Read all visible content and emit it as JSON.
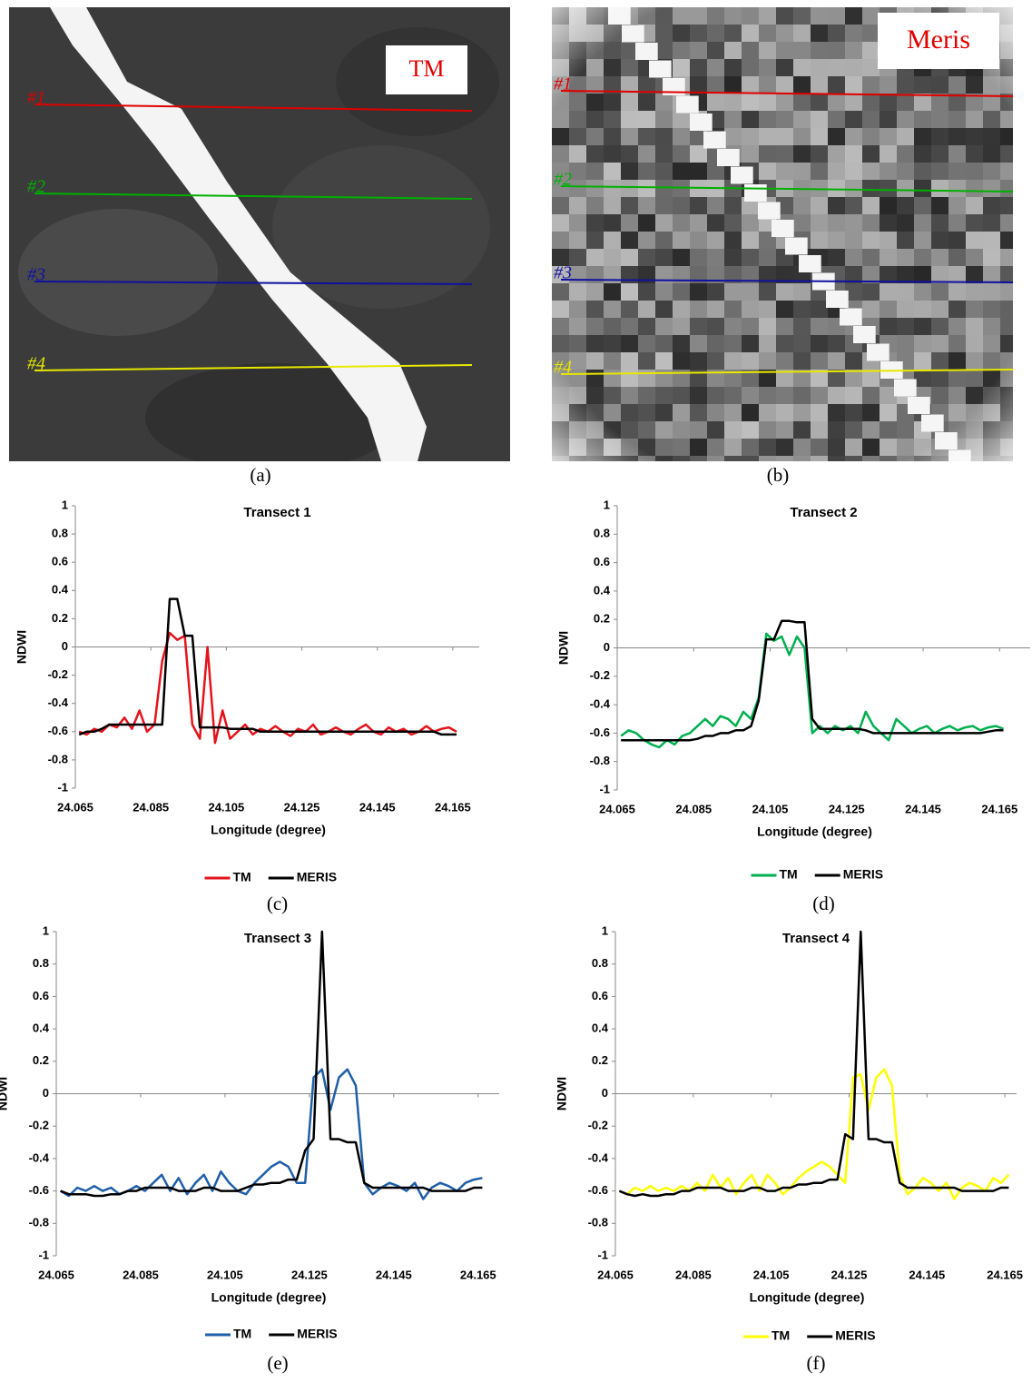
{
  "images": [
    {
      "label": "TM",
      "caption": "(a)",
      "transects": [
        "#1",
        "#2",
        "#3",
        "#4"
      ]
    },
    {
      "label": "Meris",
      "caption": "(b)",
      "transects": [
        "#1",
        "#2",
        "#3",
        "#4"
      ]
    }
  ],
  "chart_data": [
    {
      "type": "line",
      "title": "Transect 1",
      "caption": "(c)",
      "x_label": "Longitude (degree)",
      "y_label": "NDWI",
      "x": [
        24.066,
        24.068,
        24.07,
        24.072,
        24.074,
        24.076,
        24.078,
        24.08,
        24.082,
        24.084,
        24.086,
        24.088,
        24.09,
        24.092,
        24.094,
        24.096,
        24.098,
        24.1,
        24.102,
        24.104,
        24.106,
        24.108,
        24.11,
        24.112,
        24.114,
        24.116,
        24.118,
        24.12,
        24.122,
        24.124,
        24.126,
        24.128,
        24.13,
        24.132,
        24.134,
        24.136,
        24.138,
        24.14,
        24.142,
        24.144,
        24.146,
        24.148,
        24.15,
        24.152,
        24.154,
        24.156,
        24.158,
        24.16,
        24.162,
        24.164,
        24.166
      ],
      "series": [
        {
          "name": "TM",
          "color": "#e3141b",
          "values": [
            -0.6,
            -0.62,
            -0.58,
            -0.6,
            -0.55,
            -0.57,
            -0.5,
            -0.58,
            -0.45,
            -0.6,
            -0.55,
            -0.1,
            0.1,
            0.05,
            0.08,
            -0.55,
            -0.65,
            0.0,
            -0.68,
            -0.45,
            -0.65,
            -0.6,
            -0.55,
            -0.62,
            -0.58,
            -0.6,
            -0.56,
            -0.6,
            -0.63,
            -0.58,
            -0.6,
            -0.55,
            -0.62,
            -0.6,
            -0.57,
            -0.6,
            -0.62,
            -0.58,
            -0.55,
            -0.6,
            -0.62,
            -0.57,
            -0.6,
            -0.58,
            -0.62,
            -0.6,
            -0.56,
            -0.6,
            -0.58,
            -0.57,
            -0.6
          ]
        },
        {
          "name": "MERIS",
          "color": "#000000",
          "values": [
            -0.62,
            -0.6,
            -0.6,
            -0.58,
            -0.55,
            -0.55,
            -0.55,
            -0.55,
            -0.55,
            -0.55,
            -0.55,
            -0.55,
            0.34,
            0.34,
            0.08,
            0.08,
            -0.57,
            -0.57,
            -0.57,
            -0.57,
            -0.58,
            -0.58,
            -0.58,
            -0.58,
            -0.6,
            -0.6,
            -0.6,
            -0.6,
            -0.6,
            -0.6,
            -0.6,
            -0.6,
            -0.6,
            -0.6,
            -0.6,
            -0.6,
            -0.6,
            -0.6,
            -0.6,
            -0.6,
            -0.6,
            -0.6,
            -0.6,
            -0.6,
            -0.6,
            -0.6,
            -0.6,
            -0.6,
            -0.62,
            -0.62,
            -0.62
          ]
        }
      ],
      "xlim": [
        24.065,
        24.172
      ],
      "ylim": [
        -1,
        1
      ],
      "xticks": [
        24.065,
        24.085,
        24.105,
        24.125,
        24.145,
        24.165
      ],
      "yticks": [
        -1,
        -0.8,
        -0.6,
        -0.4,
        -0.2,
        0,
        0.2,
        0.4,
        0.6,
        0.8,
        1
      ],
      "legend": "bottom"
    },
    {
      "type": "line",
      "title": "Transect 2",
      "caption": "(d)",
      "x_label": "Longitude (degree)",
      "y_label": "NDWI",
      "x": [
        24.066,
        24.068,
        24.07,
        24.072,
        24.074,
        24.076,
        24.078,
        24.08,
        24.082,
        24.084,
        24.086,
        24.088,
        24.09,
        24.092,
        24.094,
        24.096,
        24.098,
        24.1,
        24.102,
        24.104,
        24.106,
        24.108,
        24.11,
        24.112,
        24.114,
        24.116,
        24.118,
        24.12,
        24.122,
        24.124,
        24.126,
        24.128,
        24.13,
        24.132,
        24.134,
        24.136,
        24.138,
        24.14,
        24.142,
        24.144,
        24.146,
        24.148,
        24.15,
        24.152,
        24.154,
        24.156,
        24.158,
        24.16,
        24.162,
        24.164,
        24.166
      ],
      "series": [
        {
          "name": "TM",
          "color": "#00b050",
          "values": [
            -0.62,
            -0.58,
            -0.6,
            -0.65,
            -0.68,
            -0.7,
            -0.65,
            -0.68,
            -0.62,
            -0.6,
            -0.55,
            -0.5,
            -0.55,
            -0.48,
            -0.5,
            -0.55,
            -0.45,
            -0.5,
            -0.35,
            0.1,
            0.05,
            0.08,
            -0.05,
            0.08,
            0.0,
            -0.6,
            -0.55,
            -0.6,
            -0.55,
            -0.58,
            -0.55,
            -0.6,
            -0.45,
            -0.55,
            -0.6,
            -0.65,
            -0.5,
            -0.55,
            -0.6,
            -0.57,
            -0.55,
            -0.6,
            -0.57,
            -0.55,
            -0.58,
            -0.56,
            -0.55,
            -0.58,
            -0.56,
            -0.55,
            -0.57
          ]
        },
        {
          "name": "MERIS",
          "color": "#000000",
          "values": [
            -0.65,
            -0.65,
            -0.65,
            -0.65,
            -0.65,
            -0.65,
            -0.65,
            -0.65,
            -0.65,
            -0.65,
            -0.64,
            -0.62,
            -0.62,
            -0.6,
            -0.6,
            -0.58,
            -0.58,
            -0.55,
            -0.37,
            0.06,
            0.06,
            0.19,
            0.19,
            0.18,
            0.18,
            -0.5,
            -0.57,
            -0.57,
            -0.57,
            -0.57,
            -0.57,
            -0.57,
            -0.58,
            -0.6,
            -0.6,
            -0.6,
            -0.6,
            -0.6,
            -0.6,
            -0.6,
            -0.6,
            -0.6,
            -0.6,
            -0.6,
            -0.6,
            -0.6,
            -0.6,
            -0.6,
            -0.59,
            -0.58,
            -0.58
          ]
        }
      ],
      "xlim": [
        24.065,
        24.173
      ],
      "ylim": [
        -1,
        1
      ],
      "xticks": [
        24.065,
        24.085,
        24.105,
        24.125,
        24.145,
        24.165
      ],
      "yticks": [
        -1,
        -0.8,
        -0.6,
        -0.4,
        -0.2,
        0,
        0.2,
        0.4,
        0.6,
        0.8,
        1
      ],
      "legend": "bottom"
    },
    {
      "type": "line",
      "title": "Transect 3",
      "caption": "(e)",
      "x_label": "Longitude (degree)",
      "y_label": "NDWI",
      "x": [
        24.066,
        24.068,
        24.07,
        24.072,
        24.074,
        24.076,
        24.078,
        24.08,
        24.082,
        24.084,
        24.086,
        24.088,
        24.09,
        24.092,
        24.094,
        24.096,
        24.098,
        24.1,
        24.102,
        24.104,
        24.106,
        24.108,
        24.11,
        24.112,
        24.114,
        24.116,
        24.118,
        24.12,
        24.122,
        24.124,
        24.126,
        24.128,
        24.13,
        24.132,
        24.134,
        24.136,
        24.138,
        24.14,
        24.142,
        24.144,
        24.146,
        24.148,
        24.15,
        24.152,
        24.154,
        24.156,
        24.158,
        24.16,
        24.162,
        24.164,
        24.166
      ],
      "series": [
        {
          "name": "TM",
          "color": "#1f5fa8",
          "values": [
            -0.6,
            -0.63,
            -0.58,
            -0.6,
            -0.57,
            -0.6,
            -0.58,
            -0.62,
            -0.6,
            -0.57,
            -0.6,
            -0.55,
            -0.5,
            -0.6,
            -0.52,
            -0.62,
            -0.55,
            -0.5,
            -0.6,
            -0.48,
            -0.55,
            -0.6,
            -0.62,
            -0.55,
            -0.5,
            -0.45,
            -0.42,
            -0.45,
            -0.55,
            -0.55,
            0.1,
            0.15,
            -0.1,
            0.1,
            0.15,
            0.05,
            -0.55,
            -0.62,
            -0.58,
            -0.55,
            -0.57,
            -0.6,
            -0.55,
            -0.65,
            -0.58,
            -0.55,
            -0.57,
            -0.6,
            -0.55,
            -0.53,
            -0.52
          ]
        },
        {
          "name": "MERIS",
          "color": "#000000",
          "values": [
            -0.6,
            -0.62,
            -0.62,
            -0.62,
            -0.63,
            -0.63,
            -0.62,
            -0.62,
            -0.6,
            -0.6,
            -0.58,
            -0.58,
            -0.58,
            -0.58,
            -0.6,
            -0.6,
            -0.6,
            -0.58,
            -0.58,
            -0.6,
            -0.6,
            -0.6,
            -0.58,
            -0.56,
            -0.56,
            -0.55,
            -0.55,
            -0.53,
            -0.53,
            -0.35,
            -0.28,
            1,
            -0.28,
            -0.28,
            -0.3,
            -0.3,
            -0.55,
            -0.58,
            -0.58,
            -0.58,
            -0.58,
            -0.58,
            -0.58,
            -0.58,
            -0.6,
            -0.6,
            -0.6,
            -0.6,
            -0.6,
            -0.58,
            -0.58
          ]
        }
      ],
      "xlim": [
        24.065,
        24.17
      ],
      "ylim": [
        -1,
        1
      ],
      "xticks": [
        24.065,
        24.085,
        24.105,
        24.125,
        24.145,
        24.165
      ],
      "yticks": [
        -1,
        -0.8,
        -0.6,
        -0.4,
        -0.2,
        0,
        0.2,
        0.4,
        0.6,
        0.8,
        1
      ],
      "legend": "bottom"
    },
    {
      "type": "line",
      "title": "Transect 4",
      "caption": "(f)",
      "x_label": "Longitude (degree)",
      "y_label": "NDWI",
      "x": [
        24.066,
        24.068,
        24.07,
        24.072,
        24.074,
        24.076,
        24.078,
        24.08,
        24.082,
        24.084,
        24.086,
        24.088,
        24.09,
        24.092,
        24.094,
        24.096,
        24.098,
        24.1,
        24.102,
        24.104,
        24.106,
        24.108,
        24.11,
        24.112,
        24.114,
        24.116,
        24.118,
        24.12,
        24.122,
        24.124,
        24.126,
        24.128,
        24.13,
        24.132,
        24.134,
        24.136,
        24.138,
        24.14,
        24.142,
        24.144,
        24.146,
        24.148,
        24.15,
        24.152,
        24.154,
        24.156,
        24.158,
        24.16,
        24.162,
        24.164,
        24.166
      ],
      "series": [
        {
          "name": "TM",
          "color": "#ffff00",
          "values": [
            -0.6,
            -0.62,
            -0.58,
            -0.6,
            -0.57,
            -0.6,
            -0.58,
            -0.6,
            -0.57,
            -0.6,
            -0.55,
            -0.6,
            -0.5,
            -0.58,
            -0.52,
            -0.62,
            -0.55,
            -0.5,
            -0.6,
            -0.5,
            -0.55,
            -0.62,
            -0.58,
            -0.52,
            -0.48,
            -0.45,
            -0.42,
            -0.45,
            -0.5,
            -0.55,
            0.1,
            0.12,
            -0.1,
            0.1,
            0.15,
            0.05,
            -0.5,
            -0.62,
            -0.58,
            -0.52,
            -0.55,
            -0.6,
            -0.55,
            -0.65,
            -0.58,
            -0.55,
            -0.57,
            -0.6,
            -0.52,
            -0.55,
            -0.5
          ]
        },
        {
          "name": "MERIS",
          "color": "#000000",
          "values": [
            -0.6,
            -0.62,
            -0.63,
            -0.62,
            -0.63,
            -0.63,
            -0.62,
            -0.62,
            -0.6,
            -0.6,
            -0.58,
            -0.58,
            -0.58,
            -0.58,
            -0.6,
            -0.6,
            -0.6,
            -0.58,
            -0.58,
            -0.6,
            -0.6,
            -0.58,
            -0.58,
            -0.56,
            -0.56,
            -0.55,
            -0.55,
            -0.53,
            -0.53,
            -0.25,
            -0.28,
            1,
            -0.28,
            -0.28,
            -0.3,
            -0.3,
            -0.55,
            -0.58,
            -0.58,
            -0.58,
            -0.58,
            -0.58,
            -0.58,
            -0.58,
            -0.6,
            -0.6,
            -0.6,
            -0.6,
            -0.6,
            -0.58,
            -0.58
          ]
        }
      ],
      "xlim": [
        24.065,
        24.168
      ],
      "ylim": [
        -1,
        1
      ],
      "xticks": [
        24.065,
        24.085,
        24.105,
        24.125,
        24.145,
        24.165
      ],
      "yticks": [
        -1,
        -0.8,
        -0.6,
        -0.4,
        -0.2,
        0,
        0.2,
        0.4,
        0.6,
        0.8,
        1
      ],
      "legend": "bottom"
    }
  ]
}
